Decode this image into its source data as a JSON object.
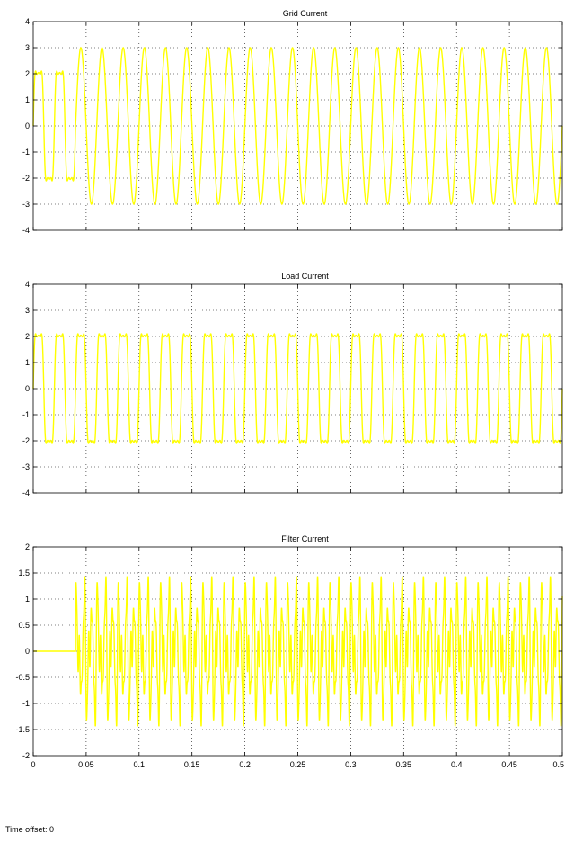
{
  "time_offset": {
    "label": "Time offset:",
    "value": "0"
  },
  "colors": {
    "signal": "#ffff00",
    "background": "#ffffff",
    "axes": "#000000",
    "grid": "#000000"
  },
  "chart_data": [
    {
      "type": "line",
      "title": "Grid Current",
      "xlim": [
        0,
        0.5
      ],
      "ylim": [
        -4,
        4
      ],
      "yticks": [
        -4,
        -3,
        -2,
        -1,
        0,
        1,
        2,
        3,
        4
      ],
      "xticks": [
        0,
        0.05,
        0.1,
        0.15,
        0.2,
        0.25,
        0.3,
        0.35,
        0.4,
        0.45,
        0.5
      ],
      "show_xtick_labels": false,
      "grid": true,
      "series": [
        {
          "description": "distorted ~2.8 A peak until 0.04 s, then sinusoid ~3 A peak",
          "frequency_hz": 50,
          "segments": [
            {
              "t_start": 0,
              "t_end": 0.04,
              "shape": "flat-top",
              "amplitude": 2.8
            },
            {
              "t_start": 0.04,
              "t_end": 0.5,
              "shape": "sine",
              "amplitude": 3.0
            }
          ]
        }
      ]
    },
    {
      "type": "line",
      "title": "Load Current",
      "xlim": [
        0,
        0.5
      ],
      "ylim": [
        -4,
        4
      ],
      "yticks": [
        -4,
        -3,
        -2,
        -1,
        0,
        1,
        2,
        3,
        4
      ],
      "xticks": [
        0,
        0.05,
        0.1,
        0.15,
        0.2,
        0.25,
        0.3,
        0.35,
        0.4,
        0.45,
        0.5
      ],
      "show_xtick_labels": false,
      "grid": true,
      "series": [
        {
          "description": "non-linear load current, flat-topped ~2.8 A peak",
          "frequency_hz": 50,
          "segments": [
            {
              "t_start": 0,
              "t_end": 0.5,
              "shape": "flat-top",
              "amplitude": 2.8
            }
          ]
        }
      ]
    },
    {
      "type": "line",
      "title": "Filter Current",
      "xlim": [
        0,
        0.5
      ],
      "ylim": [
        -2,
        2
      ],
      "yticks": [
        -2,
        -1.5,
        -1,
        -0.5,
        0,
        0.5,
        1,
        1.5,
        2
      ],
      "xticks": [
        0,
        0.05,
        0.1,
        0.15,
        0.2,
        0.25,
        0.3,
        0.35,
        0.4,
        0.45,
        0.5
      ],
      "xtick_labels": [
        "0",
        "0.05",
        "0.1",
        "0.15",
        "0.2",
        "0.25",
        "0.3",
        "0.35",
        "0.4",
        "0.45",
        "0.5"
      ],
      "show_xtick_labels": true,
      "grid": true,
      "series": [
        {
          "description": "zero until 0.04 s, then harmonic compensating current ~1.5 A peak",
          "frequency_hz": 50,
          "segments": [
            {
              "t_start": 0,
              "t_end": 0.04,
              "shape": "zero",
              "amplitude": 0
            },
            {
              "t_start": 0.04,
              "t_end": 0.5,
              "shape": "harmonics",
              "amplitude": 1.5
            }
          ]
        }
      ]
    }
  ]
}
